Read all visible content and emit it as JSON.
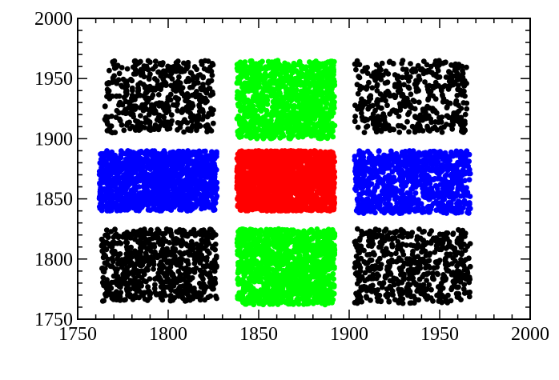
{
  "chart_data": {
    "type": "scatter",
    "title": "",
    "xlabel": "",
    "ylabel": "",
    "xlim": [
      1750,
      2000
    ],
    "ylim": [
      1750,
      2000
    ],
    "xticks": [
      1750,
      1800,
      1850,
      1900,
      1950,
      2000
    ],
    "yticks": [
      1750,
      1800,
      1850,
      1900,
      1950,
      2000
    ],
    "xtick_labels": [
      "1750",
      "1800",
      "1850",
      "1900",
      "1950",
      "2000"
    ],
    "ytick_labels": [
      "1750",
      "1800",
      "1850",
      "1900",
      "1950",
      "2000"
    ],
    "grid": false,
    "legend": "none",
    "series": [
      {
        "color": "#000000",
        "x_range": [
          1765,
          1825
        ],
        "y_range": [
          1905,
          1965
        ],
        "count": 480,
        "seed": 11
      },
      {
        "color": "#00ff00",
        "x_range": [
          1838,
          1892
        ],
        "y_range": [
          1900,
          1965
        ],
        "count": 1100,
        "seed": 12
      },
      {
        "color": "#000000",
        "x_range": [
          1903,
          1965
        ],
        "y_range": [
          1905,
          1965
        ],
        "count": 420,
        "seed": 13
      },
      {
        "color": "#0000ff",
        "x_range": [
          1762,
          1827
        ],
        "y_range": [
          1840,
          1890
        ],
        "count": 1300,
        "seed": 21
      },
      {
        "color": "#ff0000",
        "x_range": [
          1838,
          1892
        ],
        "y_range": [
          1840,
          1890
        ],
        "count": 1900,
        "seed": 22
      },
      {
        "color": "#0000ff",
        "x_range": [
          1903,
          1967
        ],
        "y_range": [
          1838,
          1890
        ],
        "count": 900,
        "seed": 23
      },
      {
        "color": "#000000",
        "x_range": [
          1763,
          1827
        ],
        "y_range": [
          1765,
          1825
        ],
        "count": 700,
        "seed": 31
      },
      {
        "color": "#00ff00",
        "x_range": [
          1838,
          1892
        ],
        "y_range": [
          1762,
          1825
        ],
        "count": 1300,
        "seed": 32
      },
      {
        "color": "#000000",
        "x_range": [
          1903,
          1967
        ],
        "y_range": [
          1763,
          1825
        ],
        "count": 560,
        "seed": 33
      }
    ]
  }
}
